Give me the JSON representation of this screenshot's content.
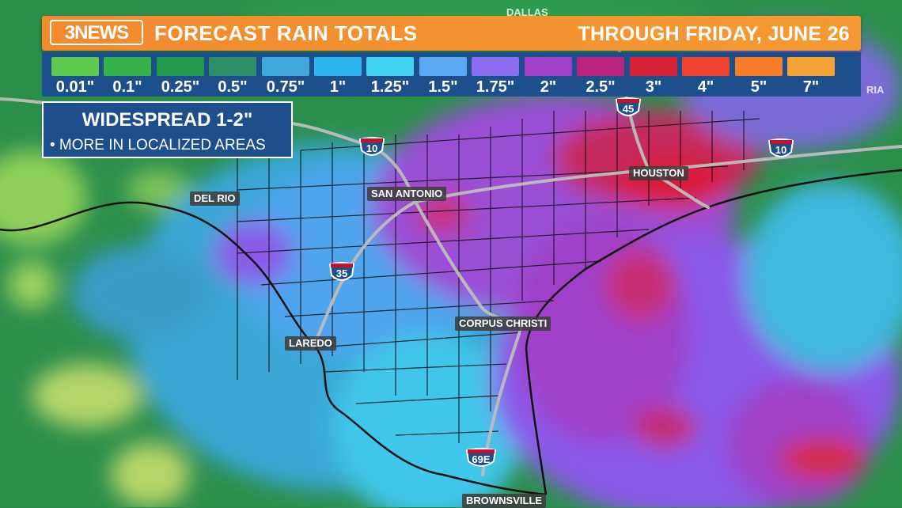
{
  "header": {
    "logo_text": "3NEWS",
    "title": "FORECAST RAIN TOTALS",
    "subtitle": "THROUGH FRIDAY, JUNE 26"
  },
  "legend": [
    {
      "label": "0.01\"",
      "color": "#5ecb4e"
    },
    {
      "label": "0.1\"",
      "color": "#35b34a"
    },
    {
      "label": "0.25\"",
      "color": "#21994a"
    },
    {
      "label": "0.5\"",
      "color": "#2e8f6a"
    },
    {
      "label": "0.75\"",
      "color": "#3fa7d9"
    },
    {
      "label": "1\"",
      "color": "#2fb5ef"
    },
    {
      "label": "1.25\"",
      "color": "#3fd2f2"
    },
    {
      "label": "1.5\"",
      "color": "#5aa7f2"
    },
    {
      "label": "1.75\"",
      "color": "#8a6cf0"
    },
    {
      "label": "2\"",
      "color": "#a23fc9"
    },
    {
      "label": "2.5\"",
      "color": "#b8247e"
    },
    {
      "label": "3\"",
      "color": "#d62236"
    },
    {
      "label": "4\"",
      "color": "#ee4430"
    },
    {
      "label": "5\"",
      "color": "#f77d2a"
    },
    {
      "label": "7\"",
      "color": "#f4a236"
    }
  ],
  "info": {
    "headline": "WIDESPREAD 1-2\"",
    "detail": "• MORE IN LOCALIZED AREAS"
  },
  "cities": {
    "del_rio": "DEL RIO",
    "san_antonio": "SAN ANTONIO",
    "houston": "HOUSTON",
    "laredo": "LAREDO",
    "corpus_christi": "CORPUS CHRISTI",
    "brownsville": "BROWNSVILLE",
    "dallas": "DALLAS",
    "victoria": "RIA"
  },
  "highways": {
    "i10_west": "10",
    "i10_east": "10",
    "i35": "35",
    "i45": "45",
    "i69e": "69E"
  }
}
